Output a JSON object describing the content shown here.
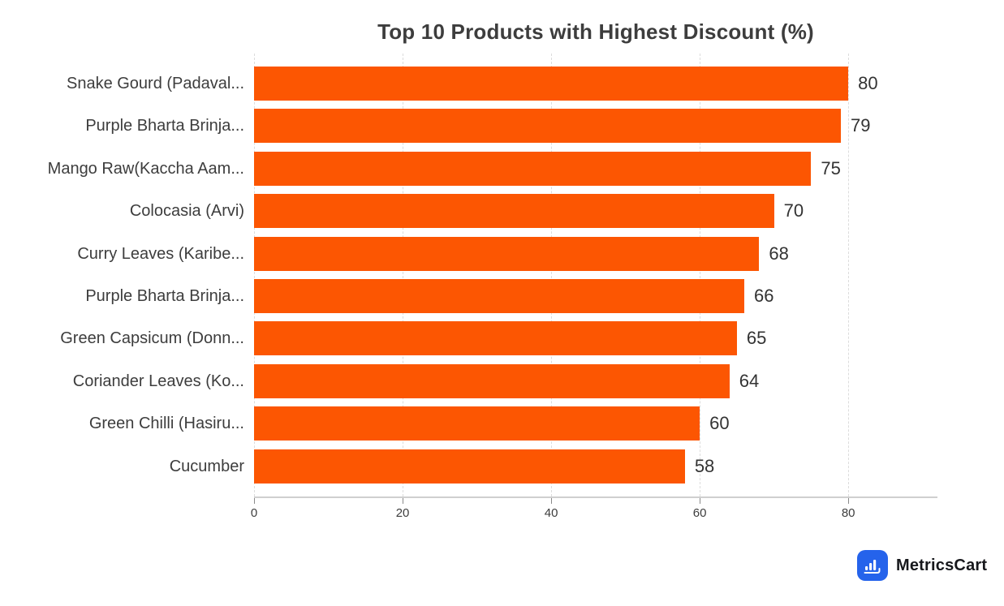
{
  "chart_data": {
    "type": "bar",
    "orientation": "horizontal",
    "title": "Top 10 Products with Highest Discount (%)",
    "categories": [
      "Snake Gourd (Padaval...",
      "Purple Bharta Brinja...",
      "Mango Raw(Kaccha Aam...",
      "Colocasia (Arvi)",
      "Curry Leaves (Karibe...",
      "Purple Bharta Brinja...",
      "Green Capsicum (Donn...",
      "Coriander Leaves (Ko...",
      "Green Chilli (Hasiru...",
      "Cucumber"
    ],
    "values": [
      80,
      79,
      75,
      70,
      68,
      66,
      65,
      64,
      60,
      58
    ],
    "value_labels": [
      "80",
      "79",
      "75",
      "70",
      "68",
      "66",
      "65",
      "64",
      "60",
      "58"
    ],
    "xlabel": "",
    "ylabel": "",
    "xlim": [
      0,
      92
    ],
    "xticks": [
      0,
      20,
      40,
      60,
      80
    ],
    "xtick_labels": [
      "0",
      "20",
      "40",
      "60",
      "80"
    ],
    "grid": "vertical-dashed",
    "legend": "none",
    "bar_color": "#FC5602",
    "title_color": "#3d3d3d",
    "label_color": "#3d3d3d",
    "gridline_color": "#dcdcdc"
  },
  "branding": {
    "logo_text": "MetricsCart",
    "logo_icon": "bar-chart-icon",
    "logo_bg_color": "#2563EB",
    "logo_fg_color": "#ffffff"
  }
}
